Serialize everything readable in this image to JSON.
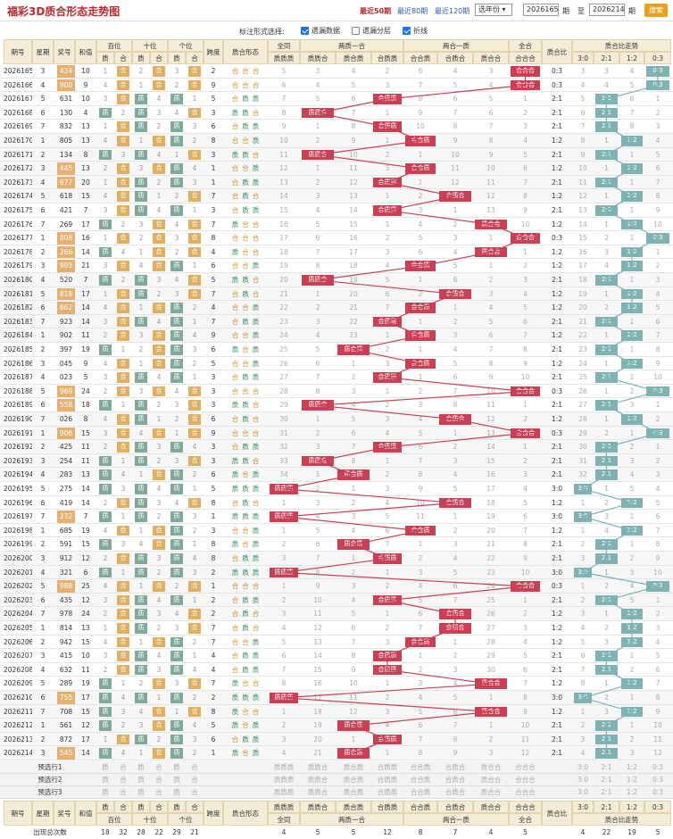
{
  "header": {
    "title": "福彩3D质合形态走势图",
    "links": [
      "最近50期",
      "最近80期",
      "最近120期"
    ],
    "year_select": "选年份",
    "from_issue": "2026165",
    "period_label": "期",
    "to_label": "至",
    "to_issue": "2026214",
    "search_label": "搜索"
  },
  "options": {
    "label": "标注形式选择:",
    "items": [
      {
        "label": "遗漏数据",
        "checked": true
      },
      {
        "label": "遗漏分层",
        "checked": false
      },
      {
        "label": "折线",
        "checked": true
      }
    ]
  },
  "columns": {
    "issue": "期号",
    "weekday": "星期",
    "number": "奖号",
    "sum": "和值",
    "hundreds": "百位",
    "tens": "十位",
    "units": "个位",
    "span": "跨度",
    "pattern": "质合形态",
    "all_same": "全同",
    "two_same": "两质一合",
    "two_comp": "两合一质",
    "all_comp": "全合",
    "ratio": "质合比",
    "ratio_trend": "质合比走势",
    "zhi": "质",
    "he": "合",
    "sub_all_same": [
      "质质质"
    ],
    "sub_two_same": [
      "质质合",
      "质合质",
      "合质质"
    ],
    "sub_two_comp": [
      "合合质",
      "合质合",
      "质合合"
    ],
    "sub_all_comp": [
      "合合合"
    ],
    "ratio_opts": [
      "3:0",
      "2:1",
      "1:2",
      "0:3"
    ]
  },
  "rows": [
    {
      "issue": "2026165",
      "wd": "3",
      "num": "424",
      "sum": "10",
      "d": [
        "合",
        "合",
        "合"
      ],
      "span": "2",
      "pattern": "合合合",
      "pi": 7,
      "ratio": "0:3",
      "ri": 3
    },
    {
      "issue": "2026166",
      "wd": "4",
      "num": "900",
      "sum": "9",
      "d": [
        "合",
        "合",
        "合"
      ],
      "span": "9",
      "pattern": "合合合",
      "pi": 7,
      "ratio": "0:3",
      "ri": 3
    },
    {
      "issue": "2026167",
      "wd": "5",
      "num": "631",
      "sum": "10",
      "d": [
        "合",
        "质",
        "质"
      ],
      "span": "5",
      "pattern": "合质质",
      "pi": 3,
      "ratio": "2:1",
      "ri": 1
    },
    {
      "issue": "2026168",
      "wd": "6",
      "num": "130",
      "sum": "4",
      "d": [
        "质",
        "质",
        "合"
      ],
      "span": "3",
      "pattern": "质质合",
      "pi": 1,
      "ratio": "2:1",
      "ri": 1
    },
    {
      "issue": "2026169",
      "wd": "7",
      "num": "832",
      "sum": "13",
      "d": [
        "合",
        "质",
        "质"
      ],
      "span": "6",
      "pattern": "合质质",
      "pi": 3,
      "ratio": "2:1",
      "ri": 1
    },
    {
      "issue": "2026170",
      "wd": "1",
      "num": "805",
      "sum": "13",
      "d": [
        "合",
        "合",
        "质"
      ],
      "span": "8",
      "pattern": "合合质",
      "pi": 4,
      "ratio": "1:2",
      "ri": 2
    },
    {
      "issue": "2026171",
      "wd": "2",
      "num": "134",
      "sum": "8",
      "d": [
        "质",
        "质",
        "合"
      ],
      "span": "3",
      "pattern": "质质合",
      "pi": 1,
      "ratio": "2:1",
      "ri": 1
    },
    {
      "issue": "2026172",
      "wd": "3",
      "num": "445",
      "sum": "13",
      "d": [
        "合",
        "合",
        "质"
      ],
      "span": "1",
      "pattern": "合合质",
      "pi": 4,
      "ratio": "1:2",
      "ri": 2
    },
    {
      "issue": "2026173",
      "wd": "4",
      "num": "677",
      "sum": "20",
      "d": [
        "合",
        "质",
        "质"
      ],
      "span": "1",
      "pattern": "合质质",
      "pi": 3,
      "ratio": "2:1",
      "ri": 1
    },
    {
      "issue": "2026174",
      "wd": "5",
      "num": "618",
      "sum": "15",
      "d": [
        "合",
        "质",
        "合"
      ],
      "span": "7",
      "pattern": "合质合",
      "pi": 5,
      "ratio": "1:2",
      "ri": 2
    },
    {
      "issue": "2026175",
      "wd": "6",
      "num": "421",
      "sum": "7",
      "d": [
        "合",
        "质",
        "质"
      ],
      "span": "3",
      "pattern": "合质质",
      "pi": 3,
      "ratio": "2:1",
      "ri": 1
    },
    {
      "issue": "2026176",
      "wd": "7",
      "num": "269",
      "sum": "17",
      "d": [
        "质",
        "合",
        "合"
      ],
      "span": "7",
      "pattern": "质合合",
      "pi": 6,
      "ratio": "1:2",
      "ri": 2
    },
    {
      "issue": "2026177",
      "wd": "1",
      "num": "808",
      "sum": "16",
      "d": [
        "合",
        "合",
        "合"
      ],
      "span": "8",
      "pattern": "合合合",
      "pi": 7,
      "ratio": "0:3",
      "ri": 3
    },
    {
      "issue": "2026178",
      "wd": "2",
      "num": "266",
      "sum": "14",
      "d": [
        "质",
        "合",
        "合"
      ],
      "span": "4",
      "pattern": "质合合",
      "pi": 6,
      "ratio": "1:2",
      "ri": 2
    },
    {
      "issue": "2026179",
      "wd": "3",
      "num": "993",
      "sum": "21",
      "d": [
        "合",
        "合",
        "质"
      ],
      "span": "6",
      "pattern": "合合质",
      "pi": 4,
      "ratio": "1:2",
      "ri": 2
    },
    {
      "issue": "2026180",
      "wd": "4",
      "num": "520",
      "sum": "7",
      "d": [
        "质",
        "质",
        "合"
      ],
      "span": "5",
      "pattern": "质质合",
      "pi": 1,
      "ratio": "2:1",
      "ri": 1
    },
    {
      "issue": "2026181",
      "wd": "5",
      "num": "818",
      "sum": "17",
      "d": [
        "合",
        "质",
        "合"
      ],
      "span": "7",
      "pattern": "合质合",
      "pi": 5,
      "ratio": "1:2",
      "ri": 2
    },
    {
      "issue": "2026182",
      "wd": "6",
      "num": "662",
      "sum": "14",
      "d": [
        "合",
        "合",
        "质"
      ],
      "span": "4",
      "pattern": "合合质",
      "pi": 4,
      "ratio": "1:2",
      "ri": 2
    },
    {
      "issue": "2026183",
      "wd": "7",
      "num": "923",
      "sum": "14",
      "d": [
        "合",
        "质",
        "质"
      ],
      "span": "7",
      "pattern": "合质质",
      "pi": 3,
      "ratio": "2:1",
      "ri": 1
    },
    {
      "issue": "2026184",
      "wd": "1",
      "num": "902",
      "sum": "11",
      "d": [
        "合",
        "合",
        "质"
      ],
      "span": "9",
      "pattern": "合合质",
      "pi": 4,
      "ratio": "1:2",
      "ri": 2
    },
    {
      "issue": "2026185",
      "wd": "2",
      "num": "397",
      "sum": "19",
      "d": [
        "质",
        "合",
        "质"
      ],
      "span": "6",
      "pattern": "质合质",
      "pi": 2,
      "ratio": "2:1",
      "ri": 1
    },
    {
      "issue": "2026186",
      "wd": "3",
      "num": "045",
      "sum": "9",
      "d": [
        "合",
        "合",
        "质"
      ],
      "span": "5",
      "pattern": "合合质",
      "pi": 4,
      "ratio": "1:2",
      "ri": 2
    },
    {
      "issue": "2026187",
      "wd": "4",
      "num": "023",
      "sum": "5",
      "d": [
        "合",
        "质",
        "质"
      ],
      "span": "3",
      "pattern": "合质质",
      "pi": 3,
      "ratio": "2:1",
      "ri": 1
    },
    {
      "issue": "2026188",
      "wd": "5",
      "num": "969",
      "sum": "24",
      "d": [
        "合",
        "合",
        "合"
      ],
      "span": "3",
      "pattern": "合合合",
      "pi": 7,
      "ratio": "0:3",
      "ri": 3
    },
    {
      "issue": "2026189",
      "wd": "6",
      "num": "558",
      "sum": "18",
      "d": [
        "质",
        "质",
        "合"
      ],
      "span": "3",
      "pattern": "质质合",
      "pi": 1,
      "ratio": "2:1",
      "ri": 1
    },
    {
      "issue": "2026190",
      "wd": "7",
      "num": "026",
      "sum": "8",
      "d": [
        "合",
        "质",
        "合"
      ],
      "span": "6",
      "pattern": "合质合",
      "pi": 5,
      "ratio": "1:2",
      "ri": 2
    },
    {
      "issue": "2026191",
      "wd": "1",
      "num": "906",
      "sum": "15",
      "d": [
        "合",
        "合",
        "合"
      ],
      "span": "9",
      "pattern": "合合合",
      "pi": 7,
      "ratio": "0:3",
      "ri": 3
    },
    {
      "issue": "2026192",
      "wd": "2",
      "num": "425",
      "sum": "11",
      "d": [
        "合",
        "质",
        "质"
      ],
      "span": "3",
      "pattern": "合质质",
      "pi": 3,
      "ratio": "2:1",
      "ri": 1
    },
    {
      "issue": "2026193",
      "wd": "3",
      "num": "254",
      "sum": "11",
      "d": [
        "质",
        "质",
        "合"
      ],
      "span": "3",
      "pattern": "质质合",
      "pi": 1,
      "ratio": "2:1",
      "ri": 1
    },
    {
      "issue": "2026194",
      "wd": "4",
      "num": "283",
      "sum": "13",
      "d": [
        "质",
        "合",
        "质"
      ],
      "span": "6",
      "pattern": "质合质",
      "pi": 2,
      "ratio": "2:1",
      "ri": 1
    },
    {
      "issue": "2026195",
      "wd": "5",
      "num": "275",
      "sum": "14",
      "d": [
        "质",
        "质",
        "质"
      ],
      "span": "5",
      "pattern": "质质质",
      "pi": 0,
      "ratio": "3:0",
      "ri": 0
    },
    {
      "issue": "2026196",
      "wd": "6",
      "num": "419",
      "sum": "14",
      "d": [
        "合",
        "质",
        "合"
      ],
      "span": "8",
      "pattern": "合质合",
      "pi": 5,
      "ratio": "1:2",
      "ri": 2
    },
    {
      "issue": "2026197",
      "wd": "7",
      "num": "232",
      "sum": "7",
      "d": [
        "质",
        "质",
        "质"
      ],
      "span": "1",
      "pattern": "质质质",
      "pi": 0,
      "ratio": "3:0",
      "ri": 0
    },
    {
      "issue": "2026198",
      "wd": "1",
      "num": "685",
      "sum": "19",
      "d": [
        "合",
        "合",
        "质"
      ],
      "span": "3",
      "pattern": "合合质",
      "pi": 4,
      "ratio": "1:2",
      "ri": 2
    },
    {
      "issue": "2026199",
      "wd": "2",
      "num": "591",
      "sum": "15",
      "d": [
        "质",
        "合",
        "质"
      ],
      "span": "8",
      "pattern": "质合质",
      "pi": 2,
      "ratio": "2:1",
      "ri": 1
    },
    {
      "issue": "2026200",
      "wd": "3",
      "num": "912",
      "sum": "12",
      "d": [
        "合",
        "质",
        "质"
      ],
      "span": "8",
      "pattern": "合质质",
      "pi": 3,
      "ratio": "2:1",
      "ri": 1
    },
    {
      "issue": "2026201",
      "wd": "4",
      "num": "321",
      "sum": "6",
      "d": [
        "质",
        "质",
        "质"
      ],
      "span": "2",
      "pattern": "质质质",
      "pi": 0,
      "ratio": "3:0",
      "ri": 0
    },
    {
      "issue": "2026202",
      "wd": "5",
      "num": "988",
      "sum": "25",
      "d": [
        "合",
        "合",
        "合"
      ],
      "span": "1",
      "pattern": "合合合",
      "pi": 7,
      "ratio": "0:3",
      "ri": 3
    },
    {
      "issue": "2026203",
      "wd": "6",
      "num": "435",
      "sum": "12",
      "d": [
        "合",
        "质",
        "质"
      ],
      "span": "2",
      "pattern": "合质质",
      "pi": 3,
      "ratio": "2:1",
      "ri": 1
    },
    {
      "issue": "2026204",
      "wd": "7",
      "num": "978",
      "sum": "24",
      "d": [
        "合",
        "质",
        "合"
      ],
      "span": "2",
      "pattern": "合质合",
      "pi": 5,
      "ratio": "1:2",
      "ri": 2
    },
    {
      "issue": "2026205",
      "wd": "1",
      "num": "814",
      "sum": "13",
      "d": [
        "合",
        "质",
        "合"
      ],
      "span": "7",
      "pattern": "合质合",
      "pi": 5,
      "ratio": "1:2",
      "ri": 2
    },
    {
      "issue": "2026206",
      "wd": "2",
      "num": "942",
      "sum": "15",
      "d": [
        "合",
        "合",
        "质"
      ],
      "span": "7",
      "pattern": "合合质",
      "pi": 4,
      "ratio": "1:2",
      "ri": 2
    },
    {
      "issue": "2026207",
      "wd": "3",
      "num": "415",
      "sum": "10",
      "d": [
        "合",
        "质",
        "质"
      ],
      "span": "4",
      "pattern": "合质质",
      "pi": 3,
      "ratio": "2:1",
      "ri": 1
    },
    {
      "issue": "2026208",
      "wd": "4",
      "num": "632",
      "sum": "11",
      "d": [
        "合",
        "质",
        "质"
      ],
      "span": "4",
      "pattern": "合质质",
      "pi": 3,
      "ratio": "2:1",
      "ri": 1
    },
    {
      "issue": "2026209",
      "wd": "5",
      "num": "289",
      "sum": "19",
      "d": [
        "质",
        "合",
        "合"
      ],
      "span": "7",
      "pattern": "质合合",
      "pi": 6,
      "ratio": "1:2",
      "ri": 2
    },
    {
      "issue": "2026210",
      "wd": "6",
      "num": "755",
      "sum": "17",
      "d": [
        "质",
        "质",
        "质"
      ],
      "span": "2",
      "pattern": "质质质",
      "pi": 0,
      "ratio": "3:0",
      "ri": 0
    },
    {
      "issue": "2026211",
      "wd": "7",
      "num": "708",
      "sum": "15",
      "d": [
        "质",
        "合",
        "合"
      ],
      "span": "8",
      "pattern": "质合合",
      "pi": 6,
      "ratio": "1:2",
      "ri": 2
    },
    {
      "issue": "2026212",
      "wd": "1",
      "num": "561",
      "sum": "12",
      "d": [
        "质",
        "合",
        "质"
      ],
      "span": "5",
      "pattern": "质合质",
      "pi": 2,
      "ratio": "2:1",
      "ri": 1
    },
    {
      "issue": "2026213",
      "wd": "2",
      "num": "872",
      "sum": "17",
      "d": [
        "合",
        "质",
        "质"
      ],
      "span": "6",
      "pattern": "合质质",
      "pi": 3,
      "ratio": "2:1",
      "ri": 1
    },
    {
      "issue": "2026214",
      "wd": "3",
      "num": "545",
      "sum": "14",
      "d": [
        "质",
        "合",
        "质"
      ],
      "span": "1",
      "pattern": "质合质",
      "pi": 2,
      "ratio": "2:1",
      "ri": 1
    }
  ],
  "preview_rows": [
    {
      "label": "预选行1"
    },
    {
      "label": "预选行2"
    },
    {
      "label": "预选行3"
    }
  ],
  "footer": {
    "label": "出现总次数",
    "counts": [
      "18",
      "32",
      "28",
      "22",
      "29",
      "21",
      "4",
      "5",
      "5",
      "12",
      "8",
      "7",
      "4",
      "5",
      "4",
      "22",
      "19",
      "5"
    ]
  },
  "colors": {
    "accent": "#c0282e",
    "tag_red": "#c94055",
    "tag_teal": "#7fb3b3",
    "tag_orange": "#e5b070",
    "zhi_tag": "#7faa9a",
    "he_tag": "#e0b060"
  }
}
